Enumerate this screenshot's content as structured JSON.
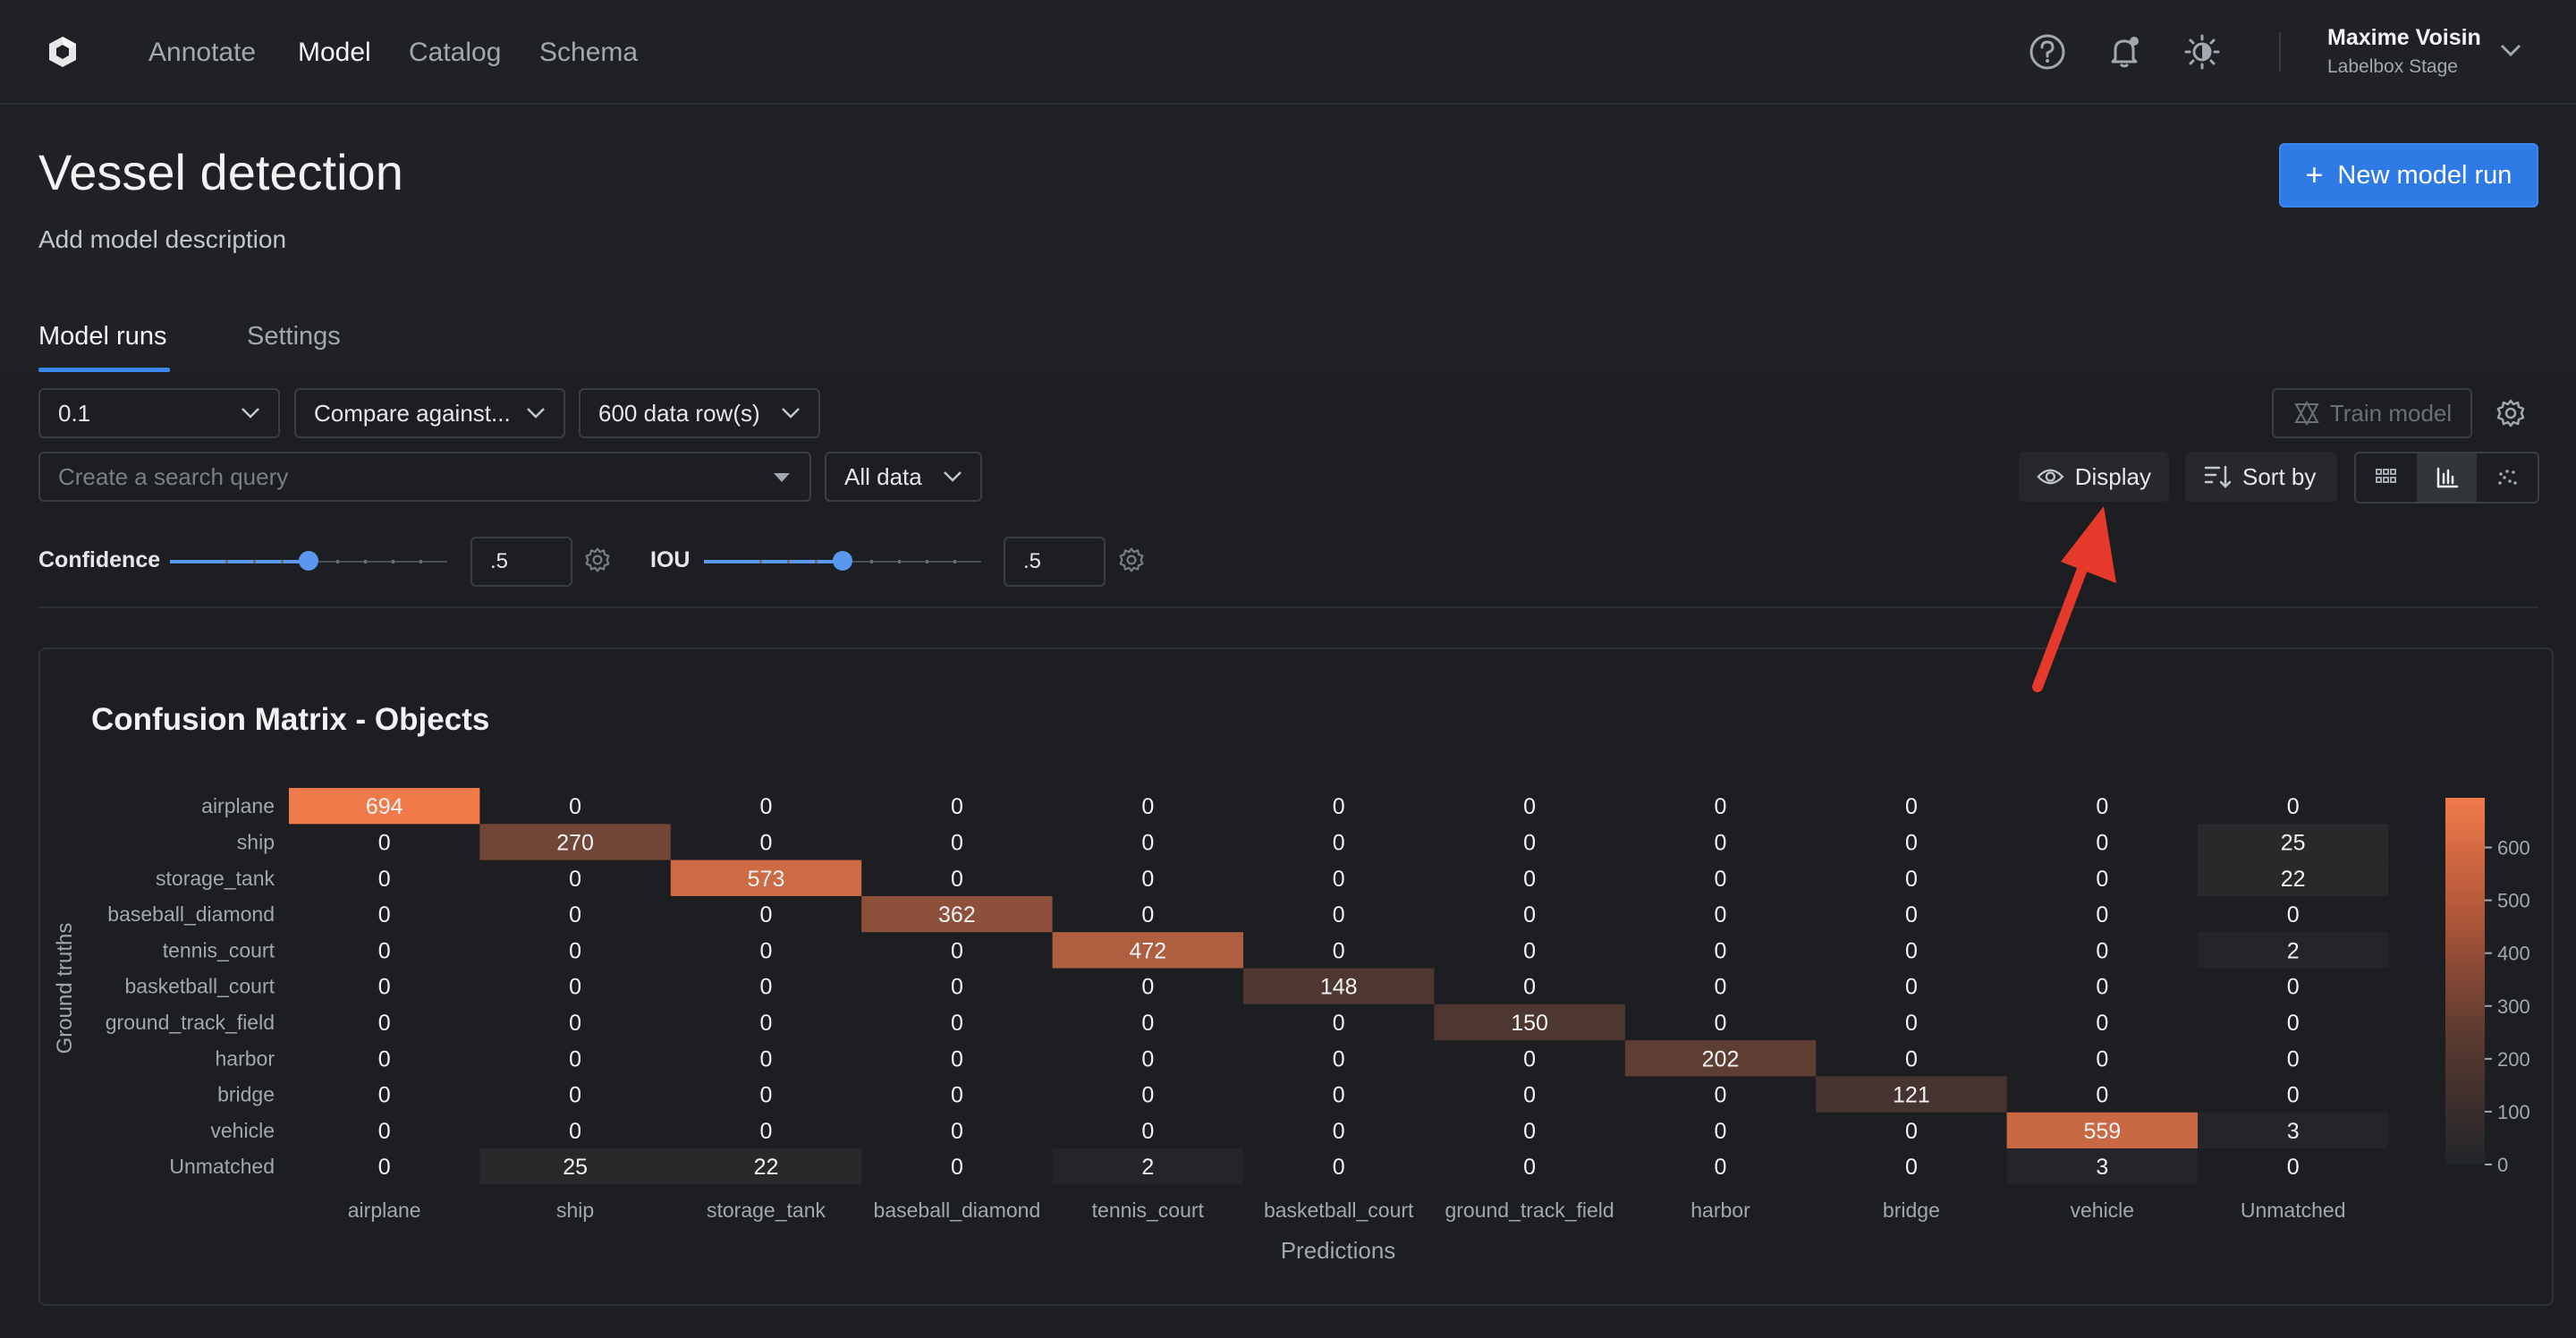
{
  "nav": {
    "items": [
      "Annotate",
      "Model",
      "Catalog",
      "Schema"
    ],
    "active": "Model",
    "user_name": "Maxime Voisin",
    "user_org": "Labelbox Stage"
  },
  "header": {
    "title": "Vessel detection",
    "description": "Add model description",
    "new_run_label": "New model run",
    "tabs": [
      "Model runs",
      "Settings"
    ]
  },
  "toolbar": {
    "version": "0.1",
    "compare": "Compare against...",
    "rows": "600 data row(s)",
    "search_placeholder": "Create a search query",
    "filter": "All data",
    "train_label": "Train model",
    "display_label": "Display",
    "sort_label": "Sort by"
  },
  "sliders": {
    "confidence": {
      "label": "Confidence",
      "value": ".5",
      "level": 0.5
    },
    "iou": {
      "label": "IOU",
      "value": ".5",
      "level": 0.5
    }
  },
  "colors": {
    "accent": "#2e7be5",
    "heat_low": "#22252a",
    "heat_high": "#f07a4a"
  },
  "chart_data": {
    "type": "heatmap",
    "title": "Confusion Matrix - Objects",
    "xlabel": "Predictions",
    "ylabel": "Ground truths",
    "categories": [
      "airplane",
      "ship",
      "storage_tank",
      "baseball_diamond",
      "tennis_court",
      "basketball_court",
      "ground_track_field",
      "harbor",
      "bridge",
      "vehicle",
      "Unmatched"
    ],
    "values": [
      [
        694,
        0,
        0,
        0,
        0,
        0,
        0,
        0,
        0,
        0,
        0
      ],
      [
        0,
        270,
        0,
        0,
        0,
        0,
        0,
        0,
        0,
        0,
        25
      ],
      [
        0,
        0,
        573,
        0,
        0,
        0,
        0,
        0,
        0,
        0,
        22
      ],
      [
        0,
        0,
        0,
        362,
        0,
        0,
        0,
        0,
        0,
        0,
        0
      ],
      [
        0,
        0,
        0,
        0,
        472,
        0,
        0,
        0,
        0,
        0,
        2
      ],
      [
        0,
        0,
        0,
        0,
        0,
        148,
        0,
        0,
        0,
        0,
        0
      ],
      [
        0,
        0,
        0,
        0,
        0,
        0,
        150,
        0,
        0,
        0,
        0
      ],
      [
        0,
        0,
        0,
        0,
        0,
        0,
        0,
        202,
        0,
        0,
        0
      ],
      [
        0,
        0,
        0,
        0,
        0,
        0,
        0,
        0,
        121,
        0,
        0
      ],
      [
        0,
        0,
        0,
        0,
        0,
        0,
        0,
        0,
        0,
        559,
        3
      ],
      [
        0,
        25,
        22,
        0,
        2,
        0,
        0,
        0,
        0,
        3,
        0
      ]
    ],
    "colorbar_ticks": [
      0,
      100,
      200,
      300,
      400,
      500,
      600
    ],
    "colorbar_range": [
      0,
      694
    ]
  }
}
